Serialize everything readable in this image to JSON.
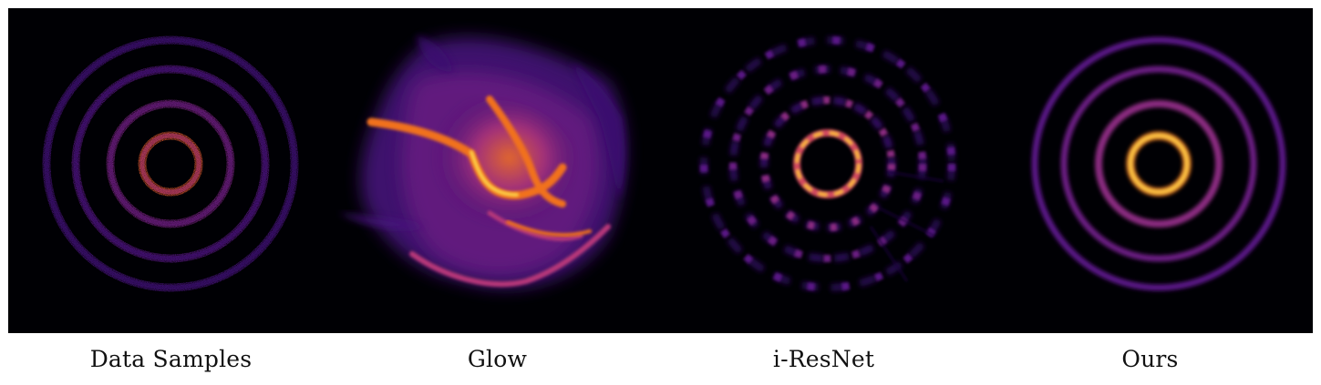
{
  "figure": {
    "panels": [
      {
        "id": "data",
        "caption": "Data Samples"
      },
      {
        "id": "glow",
        "caption": "Glow"
      },
      {
        "id": "iresnet",
        "caption": "i-ResNet"
      },
      {
        "id": "ours",
        "caption": "Ours"
      }
    ],
    "colors": {
      "background": "#000004",
      "dark_purple": "#3b0f70",
      "purple": "#6a1c82",
      "magenta": "#b73779",
      "orange": "#f1711f",
      "yellow": "#fcd24a"
    }
  }
}
